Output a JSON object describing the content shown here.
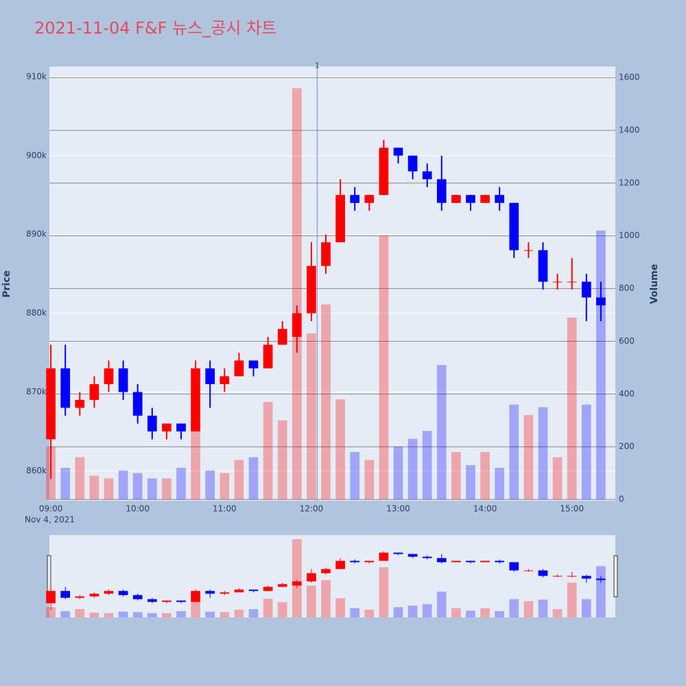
{
  "chart_data": {
    "type": "candlestick",
    "title": "2021-11-04 F&F 뉴스_공시 차트",
    "y_title": "Price",
    "y2_title": "Volume",
    "x_date_label": "Nov 4, 2021",
    "increasing_color": "#ff0000",
    "decreasing_color": "#0000ff",
    "x": [
      "09:00",
      "09:10",
      "09:20",
      "09:30",
      "09:40",
      "09:50",
      "10:00",
      "10:10",
      "10:20",
      "10:30",
      "10:40",
      "10:50",
      "11:00",
      "11:10",
      "11:20",
      "11:30",
      "11:40",
      "11:50",
      "12:00",
      "12:10",
      "12:20",
      "12:30",
      "12:40",
      "12:50",
      "13:00",
      "13:10",
      "13:20",
      "13:30",
      "13:40",
      "13:50",
      "14:00",
      "14:10",
      "14:20",
      "14:30",
      "14:40",
      "14:50",
      "15:00",
      "15:10",
      "15:20"
    ],
    "open": [
      864000,
      873000,
      868000,
      869000,
      871000,
      873000,
      870000,
      867000,
      865000,
      866000,
      865000,
      873000,
      871000,
      872000,
      874000,
      873000,
      876000,
      877000,
      880000,
      886000,
      889000,
      895000,
      894000,
      895000,
      901000,
      900000,
      898000,
      897000,
      894000,
      895000,
      894000,
      895000,
      894000,
      888000,
      888000,
      884000,
      884000,
      884000,
      882000
    ],
    "high": [
      876000,
      876000,
      870000,
      872000,
      874000,
      874000,
      871000,
      868000,
      866000,
      866000,
      874000,
      874000,
      873000,
      875000,
      874000,
      877000,
      879000,
      881000,
      889000,
      890000,
      897000,
      896000,
      895000,
      902000,
      901000,
      900000,
      899000,
      900000,
      895000,
      895000,
      895000,
      896000,
      894000,
      889000,
      889000,
      885000,
      887000,
      885000,
      884000
    ],
    "low": [
      859000,
      867000,
      867000,
      868000,
      870000,
      869000,
      866000,
      864000,
      864000,
      864000,
      865000,
      868000,
      870000,
      872000,
      872000,
      873000,
      876000,
      875000,
      879000,
      885000,
      889000,
      893000,
      893000,
      895000,
      899000,
      897000,
      896000,
      893000,
      894000,
      893000,
      894000,
      893000,
      887000,
      887000,
      883000,
      883000,
      883000,
      879000,
      879000
    ],
    "close": [
      873000,
      868000,
      869000,
      871000,
      873000,
      870000,
      867000,
      865000,
      866000,
      865000,
      873000,
      871000,
      872000,
      874000,
      873000,
      876000,
      878000,
      880000,
      886000,
      889000,
      895000,
      894000,
      895000,
      901000,
      900000,
      898000,
      897000,
      894000,
      895000,
      894000,
      895000,
      894000,
      888000,
      888000,
      884000,
      884000,
      884000,
      882000,
      881000
    ],
    "volume": [
      200,
      120,
      160,
      90,
      80,
      110,
      100,
      80,
      80,
      120,
      360,
      110,
      100,
      150,
      160,
      370,
      300,
      1560,
      630,
      740,
      380,
      180,
      150,
      1000,
      200,
      230,
      260,
      510,
      180,
      130,
      180,
      120,
      360,
      320,
      350,
      160,
      690,
      360,
      1020
    ],
    "xlim": [
      "08:59",
      "15:30"
    ],
    "ylim": [
      856200,
      911300
    ],
    "y2lim": [
      -5,
      1642
    ],
    "xticks": [
      "09:00",
      "10:00",
      "11:00",
      "12:00",
      "13:00",
      "14:00",
      "15:00"
    ],
    "yticks": [
      {
        "value": 860000,
        "label": "860k"
      },
      {
        "value": 870000,
        "label": "870k"
      },
      {
        "value": 880000,
        "label": "880k"
      },
      {
        "value": 890000,
        "label": "890k"
      },
      {
        "value": 900000,
        "label": "900k"
      },
      {
        "value": 910000,
        "label": "910k"
      }
    ],
    "y2ticks": [
      0,
      200,
      400,
      600,
      800,
      1000,
      1200,
      1400,
      1600
    ],
    "annotations": [
      {
        "x": "12:04",
        "text": "1"
      }
    ],
    "grid": true,
    "rangeslider": true
  }
}
